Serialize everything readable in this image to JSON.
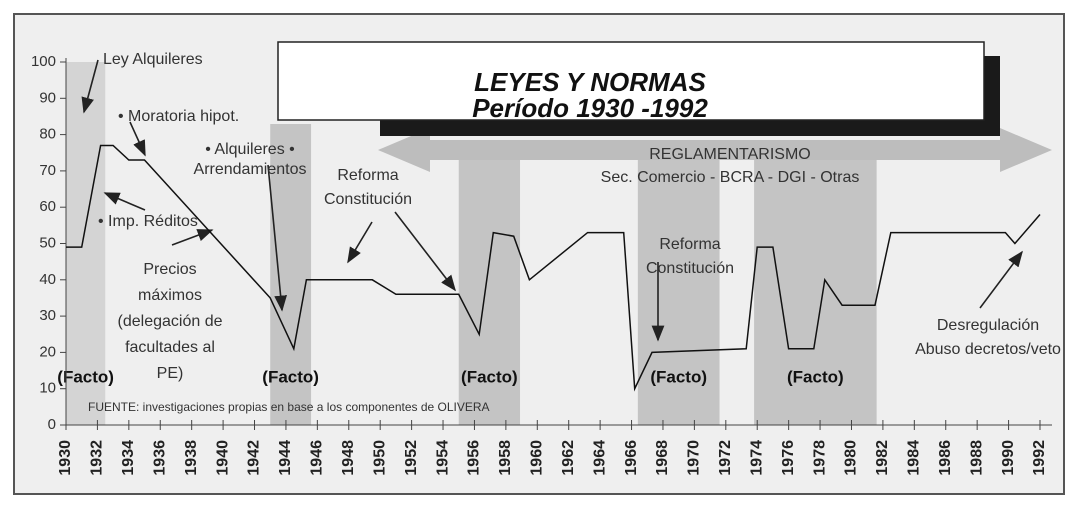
{
  "chart_data": {
    "type": "line",
    "title": [
      "LEYES Y NORMAS",
      "Período 1930 -1992"
    ],
    "banner": [
      "REGLAMENTARISMO",
      "Sec. Comercio - BCRA - DGI - Otras"
    ],
    "source": "FUENTE: investigaciones propias en base a los componentes de OLIVERA",
    "x": [
      1930,
      1931,
      1932.2,
      1933,
      1934,
      1935,
      1943,
      1944.5,
      1945.3,
      1949.5,
      1951,
      1955,
      1956.3,
      1957.2,
      1958.5,
      1959.5,
      1963.2,
      1965.5,
      1966.2,
      1967.3,
      1973.3,
      1974,
      1975,
      1976,
      1977.6,
      1978.3,
      1979.4,
      1981.5,
      1982.5,
      1989.8,
      1990.4,
      1992
    ],
    "values": [
      49,
      49,
      77,
      77,
      73,
      73,
      35,
      21,
      40,
      40,
      36,
      36,
      25,
      53,
      52,
      40,
      53,
      53,
      10,
      20,
      21,
      49,
      49,
      21,
      21,
      40,
      33,
      33,
      53,
      53,
      50,
      58
    ],
    "color": "#111111",
    "xlim": [
      1930,
      1992
    ],
    "xticks": [
      1930,
      1932,
      1934,
      1936,
      1938,
      1940,
      1942,
      1944,
      1946,
      1948,
      1950,
      1952,
      1954,
      1956,
      1958,
      1960,
      1962,
      1964,
      1966,
      1968,
      1970,
      1972,
      1974,
      1976,
      1978,
      1980,
      1982,
      1984,
      1986,
      1988,
      1990,
      1992
    ],
    "ylim": [
      0,
      100
    ],
    "yticks": [
      0,
      10,
      20,
      30,
      40,
      50,
      60,
      70,
      80,
      90,
      100
    ],
    "periods": [
      {
        "start": 1930,
        "end": 1932.5,
        "label": "(Facto)"
      },
      {
        "start": 1943,
        "end": 1945.6,
        "label": "(Facto)"
      },
      {
        "start": 1955,
        "end": 1958.9,
        "label": "(Facto)"
      },
      {
        "start": 1966.4,
        "end": 1971.6,
        "label": "(Facto)"
      },
      {
        "start": 1973.8,
        "end": 1981.6,
        "label": "(Facto)"
      }
    ],
    "annotations": [
      {
        "lines": [
          "Ley Alquileres"
        ]
      },
      {
        "lines": [
          "• Moratoria hipot."
        ]
      },
      {
        "lines": [
          "• Alquileres •",
          "Arrendamientos"
        ]
      },
      {
        "lines": [
          "Reforma",
          "Constitución"
        ]
      },
      {
        "lines": [
          "• Imp. Réditos"
        ]
      },
      {
        "lines": [
          "Precios",
          "máximos",
          "(delegación de",
          "facultades al",
          "PE)"
        ]
      },
      {
        "lines": [
          "Reforma",
          "Constitución"
        ]
      },
      {
        "lines": [
          "Desregulación",
          "Abuso decretos/veto"
        ]
      }
    ]
  }
}
